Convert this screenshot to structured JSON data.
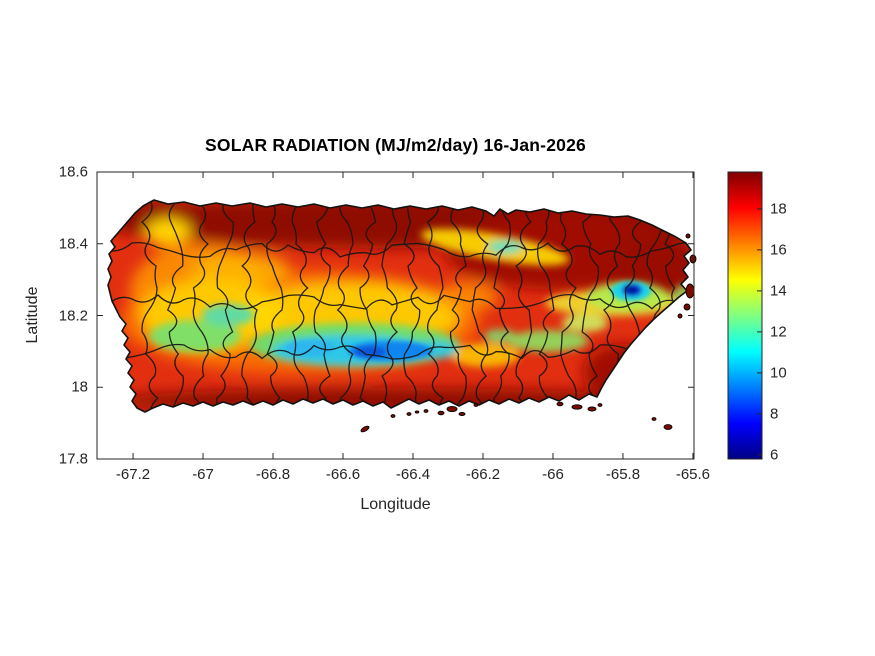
{
  "title": "SOLAR RADIATION (MJ/m2/day) 16-Jan-2026",
  "axes": {
    "xlabel": "Longitude",
    "ylabel": "Latitude",
    "x_tick_labels": [
      "-67.2",
      "-67",
      "-66.8",
      "-66.6",
      "-66.4",
      "-66.2",
      "-66",
      "-65.8",
      "-65.6"
    ],
    "x_tick_values": [
      -67.2,
      -67.0,
      -66.8,
      -66.6,
      -66.4,
      -66.2,
      -66.0,
      -65.8,
      -65.6
    ],
    "y_tick_labels": [
      "18.6",
      "18.4",
      "18.2",
      "18",
      "17.8"
    ],
    "y_tick_values": [
      18.6,
      18.4,
      18.2,
      18.0,
      17.8
    ]
  },
  "colorbar": {
    "tick_labels": [
      "18",
      "16",
      "14",
      "12",
      "10",
      "8",
      "6"
    ],
    "tick_values": [
      18,
      16,
      14,
      12,
      10,
      8,
      6
    ],
    "colormap": "jet",
    "clim": [
      5.8,
      19.8
    ]
  },
  "chart_data": {
    "type": "heatmap",
    "title": "SOLAR RADIATION (MJ/m2/day) 16-Jan-2026",
    "date": "16-Jan-2026",
    "units": "MJ/m2/day",
    "xlabel": "Longitude",
    "ylabel": "Latitude",
    "xlim": [
      -67.3,
      -65.6
    ],
    "ylim": [
      17.8,
      18.6
    ],
    "region": "Puerto Rico with municipality boundaries",
    "colormap": "jet",
    "colormap_stops": [
      "#000084",
      "#0000ff",
      "#00ffff",
      "#80ff80",
      "#ffff00",
      "#ff0000",
      "#800000"
    ],
    "colorbar_ticks": [
      6,
      8,
      10,
      12,
      14,
      16,
      18
    ],
    "value_range": [
      5.8,
      19.8
    ],
    "legend_position": "right-colorbar",
    "grid": false,
    "features": [
      {
        "name": "north-coast-high-band",
        "lon_range": [
          -67.1,
          -65.8
        ],
        "lat": 18.46,
        "value": 18.5
      },
      {
        "name": "northwest-yellow-patch",
        "lon": -67.08,
        "lat": 18.41,
        "value": 15
      },
      {
        "name": "west-central-yellow-valley",
        "lon": -66.95,
        "lat": 18.18,
        "value": 14
      },
      {
        "name": "west-green-patch",
        "lon": -66.98,
        "lat": 18.1,
        "value": 12.5
      },
      {
        "name": "cordillera-central-low-band",
        "lon_range": [
          -66.75,
          -66.35
        ],
        "lat": 18.1,
        "value": 9.5
      },
      {
        "name": "cordillera-blue-core",
        "lon": -66.47,
        "lat": 18.09,
        "value": 8
      },
      {
        "name": "northeast-yellow-band",
        "lon": -66.35,
        "lat": 18.38,
        "value": 14.5
      },
      {
        "name": "el-yunque-minimum",
        "lon": -65.77,
        "lat": 18.28,
        "value": 6
      },
      {
        "name": "el-yunque-green-halo",
        "lon": -65.8,
        "lat": 18.26,
        "value": 12.5
      },
      {
        "name": "southeast-green-patches",
        "lon": -66.05,
        "lat": 18.07,
        "value": 13
      },
      {
        "name": "south-coast-high-band",
        "lon_range": [
          -67.0,
          -65.9
        ],
        "lat": 17.98,
        "value": 18.5
      },
      {
        "name": "typical-interior",
        "value": 16.5
      }
    ]
  }
}
